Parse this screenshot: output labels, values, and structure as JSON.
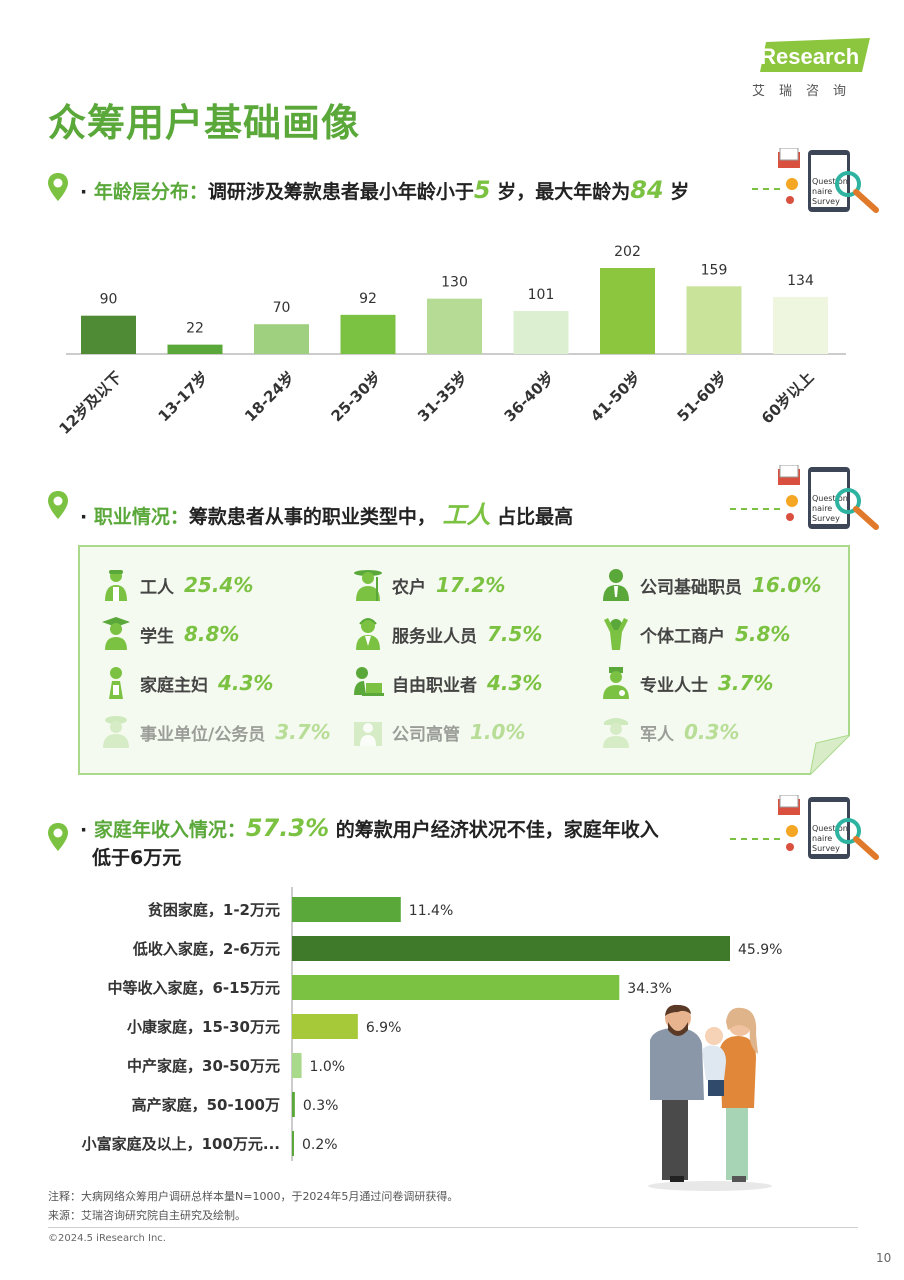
{
  "title": "众筹用户基础画像",
  "logo": {
    "brand": "iResearch",
    "cn": "艾瑞咨询"
  },
  "survey_icon_text": [
    "Question",
    "naire",
    "Survey"
  ],
  "section1": {
    "prefix": "·",
    "label": "年龄层分布：",
    "text1": "调研涉及筹款患者最小年龄小于",
    "num1": "5",
    "text2": "岁，最大年龄为",
    "num2": "84",
    "text3": "岁"
  },
  "section2": {
    "prefix": "·",
    "label": "职业情况：",
    "text1": "筹款患者从事的职业类型中，",
    "highlight": "工人",
    "text2": "占比最高"
  },
  "section3": {
    "prefix": "·",
    "label": "家庭年收入情况：",
    "highlight": "57.3%",
    "text1": "的筹款用户经济状况不佳，家庭年收入",
    "line2": "低于6万元"
  },
  "occupations": [
    {
      "label": "工人",
      "pct": "25.4%",
      "icon": "worker-icon"
    },
    {
      "label": "农户",
      "pct": "17.2%",
      "icon": "farmer-icon"
    },
    {
      "label": "公司基础职员",
      "pct": "16.0%",
      "icon": "staff-icon"
    },
    {
      "label": "学生",
      "pct": "8.8%",
      "icon": "student-icon"
    },
    {
      "label": "服务业人员",
      "pct": "7.5%",
      "icon": "service-icon"
    },
    {
      "label": "个体工商户",
      "pct": "5.8%",
      "icon": "self-employed-icon"
    },
    {
      "label": "家庭主妇",
      "pct": "4.3%",
      "icon": "housewife-icon"
    },
    {
      "label": "自由职业者",
      "pct": "4.3%",
      "icon": "freelancer-icon"
    },
    {
      "label": "专业人士",
      "pct": "3.7%",
      "icon": "doctor-icon"
    },
    {
      "label": "事业单位/公务员",
      "pct": "3.7%",
      "icon": "officer-icon"
    },
    {
      "label": "公司高管",
      "pct": "1.0%",
      "icon": "executive-icon"
    },
    {
      "label": "军人",
      "pct": "0.3%",
      "icon": "soldier-icon"
    }
  ],
  "chart_data": [
    {
      "type": "bar",
      "categories": [
        "12岁及以下",
        "13-17岁",
        "18-24岁",
        "25-30岁",
        "31-35岁",
        "36-40岁",
        "41-50岁",
        "51-60岁",
        "60岁以上"
      ],
      "values": [
        90,
        22,
        70,
        92,
        130,
        101,
        202,
        159,
        134
      ],
      "colors": [
        "#4f8a34",
        "#5aa83a",
        "#9fd080",
        "#7cc242",
        "#b5db94",
        "#dcefd0",
        "#8cc63f",
        "#c9e39a",
        "#eef6e0"
      ],
      "title": "",
      "xlabel": "",
      "ylabel": "",
      "ylim": [
        0,
        202
      ]
    },
    {
      "type": "bar",
      "orientation": "horizontal",
      "categories": [
        "贫困家庭，1-2万元",
        "低收入家庭，2-6万元",
        "中等收入家庭，6-15万元",
        "小康家庭，15-30万元",
        "中产家庭，30-50万元",
        "高产家庭，50-100万",
        "小富家庭及以上，100万元..."
      ],
      "values": [
        11.4,
        45.9,
        34.3,
        6.9,
        1.0,
        0.3,
        0.2
      ],
      "labels": [
        "11.4%",
        "45.9%",
        "34.3%",
        "6.9%",
        "1.0%",
        "0.3%",
        "0.2%"
      ],
      "colors": [
        "#5aa83a",
        "#3e7a2a",
        "#7cc242",
        "#a6c93a",
        "#a9d98a",
        "#5aa83a",
        "#5aa83a"
      ],
      "title": "",
      "xlabel": "",
      "ylabel": "",
      "xlim": [
        0,
        45.9
      ]
    }
  ],
  "notes": {
    "note": "注释：大病网络众筹用户调研总样本量N=1000，于2024年5月通过问卷调研获得。",
    "source": "来源：艾瑞咨询研究院自主研究及绘制。"
  },
  "copyright": "©2024.5 iResearch Inc.",
  "page_number": "10"
}
